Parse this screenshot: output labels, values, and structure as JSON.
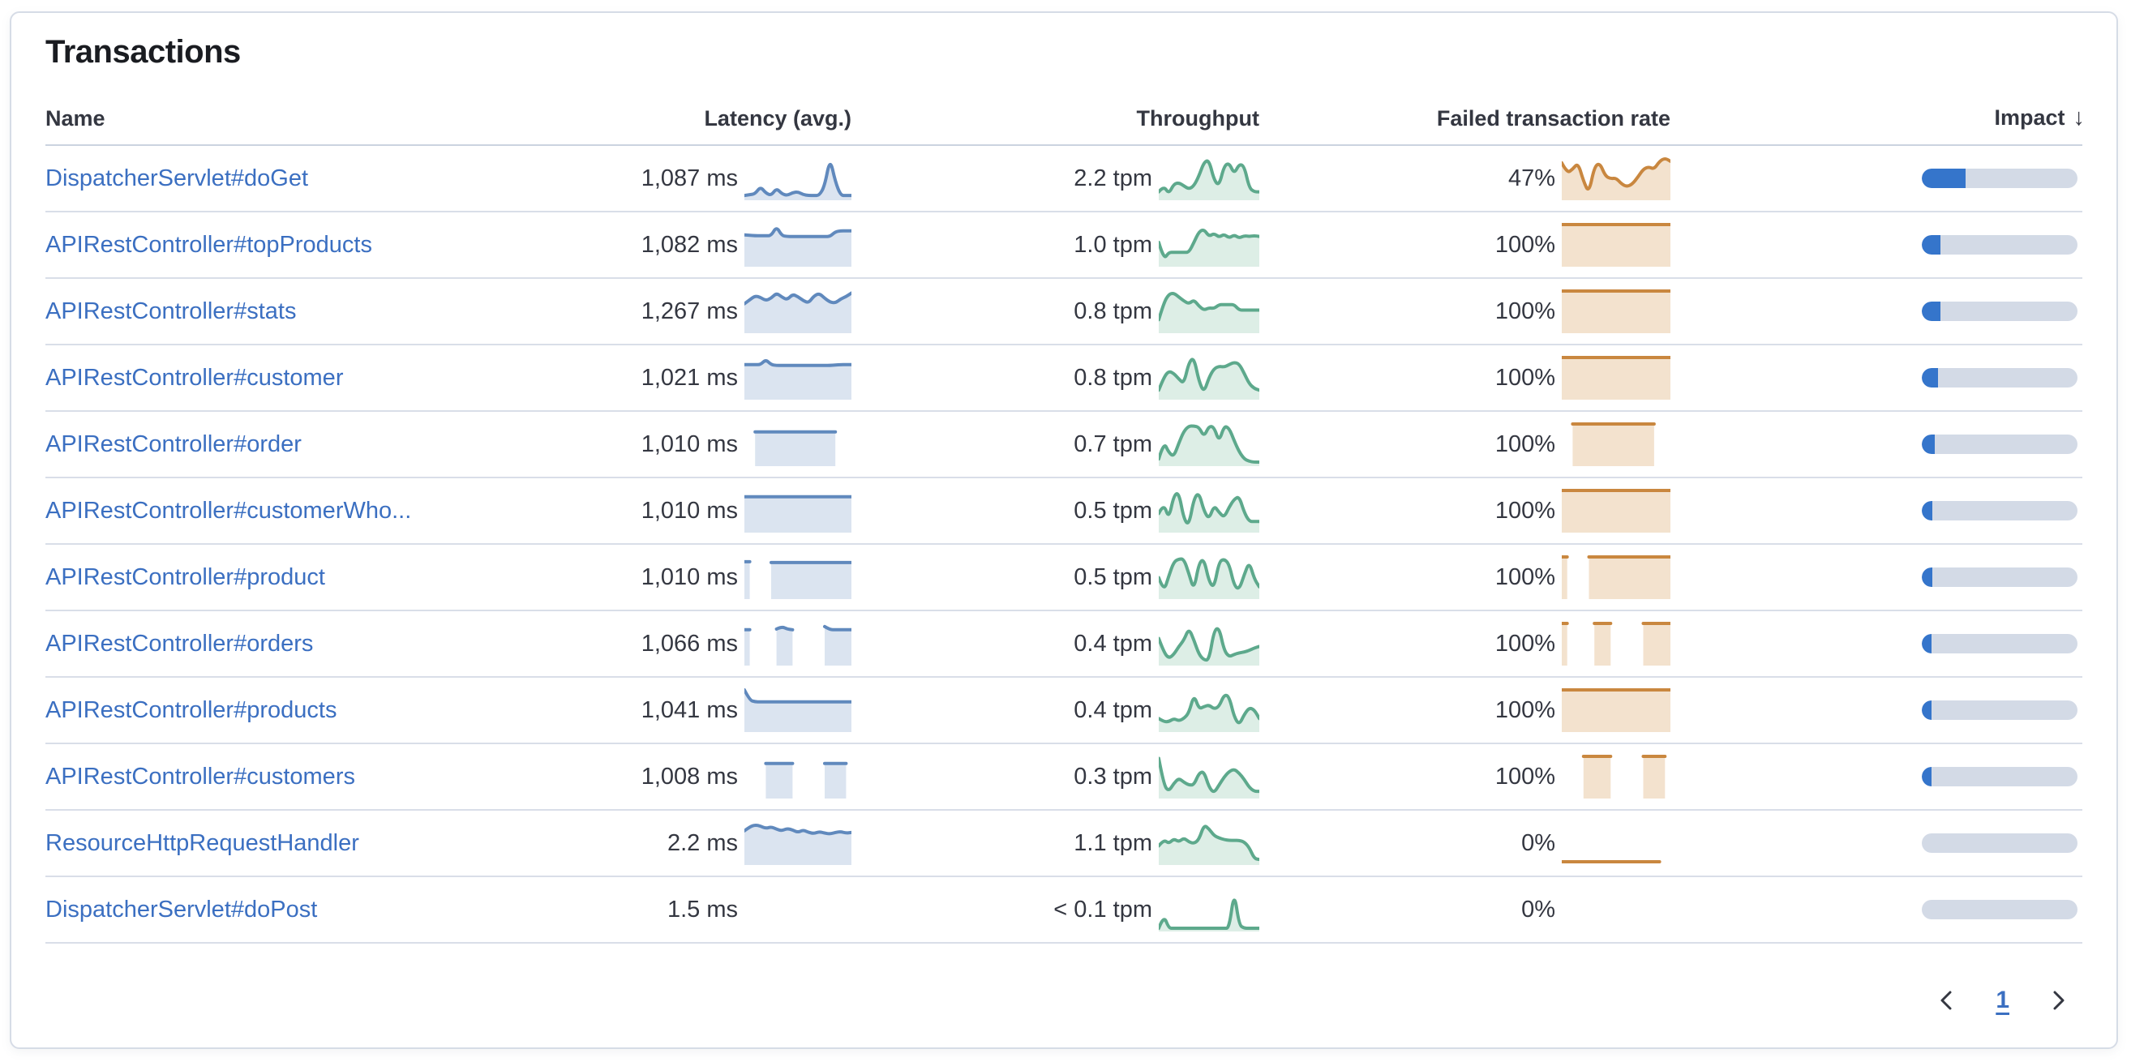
{
  "panel": {
    "title": "Transactions"
  },
  "table": {
    "columns": [
      {
        "key": "name",
        "label": "Name"
      },
      {
        "key": "latency",
        "label": "Latency (avg.)"
      },
      {
        "key": "throughput",
        "label": "Throughput"
      },
      {
        "key": "failed",
        "label": "Failed transaction rate"
      },
      {
        "key": "impact",
        "label": "Impact",
        "sorted": "desc"
      }
    ],
    "sort_icon": "↓",
    "rows": [
      {
        "name": "DispatcherServlet#doGet",
        "latency": "1,087 ms",
        "throughput": "2.2 tpm",
        "failed_rate": "47%",
        "impact_pct": 28,
        "latency_spark": [
          0.06,
          0.08,
          0.1,
          0.28,
          0.12,
          0.06,
          0.24,
          0.1,
          0.06,
          0.13,
          0.15,
          0.08,
          0.06,
          0.06,
          0.06,
          0.3,
          1.0,
          0.4,
          0.06,
          0.06,
          0.06
        ],
        "throughput_spark": [
          0.15,
          0.3,
          0.1,
          0.35,
          0.38,
          0.3,
          0.22,
          0.3,
          0.55,
          0.9,
          0.95,
          0.45,
          0.3,
          0.8,
          0.88,
          0.6,
          0.85,
          0.8,
          0.25,
          0.15,
          0.15
        ],
        "failed_spark": [
          0.88,
          0.62,
          0.72,
          0.88,
          0.42,
          0.12,
          0.78,
          0.88,
          0.55,
          0.48,
          0.5,
          0.35,
          0.28,
          0.35,
          0.52,
          0.72,
          0.78,
          0.72,
          0.92,
          1.0,
          0.92
        ]
      },
      {
        "name": "APIRestController#topProducts",
        "latency": "1,082 ms",
        "throughput": "1.0 tpm",
        "failed_rate": "100%",
        "impact_pct": 12,
        "latency_spark": [
          0.74,
          0.73,
          0.72,
          0.72,
          0.72,
          0.72,
          0.95,
          0.72,
          0.7,
          0.7,
          0.7,
          0.7,
          0.7,
          0.7,
          0.7,
          0.7,
          0.7,
          0.82,
          0.84,
          0.84,
          0.84
        ],
        "throughput_spark": [
          0.55,
          0.12,
          0.3,
          0.3,
          0.3,
          0.3,
          0.3,
          0.55,
          0.82,
          0.88,
          0.7,
          0.78,
          0.68,
          0.76,
          0.66,
          0.74,
          0.66,
          0.72,
          0.7,
          0.72,
          0.7
        ],
        "failed_spark": [
          1,
          1,
          1,
          1,
          1,
          1,
          1,
          1,
          1,
          1,
          1,
          1,
          1,
          1,
          1,
          1,
          1,
          1,
          1,
          1,
          1
        ]
      },
      {
        "name": "APIRestController#stats",
        "latency": "1,267 ms",
        "throughput": "0.8 tpm",
        "failed_rate": "100%",
        "impact_pct": 12,
        "latency_spark": [
          0.68,
          0.78,
          0.88,
          0.84,
          0.76,
          0.82,
          0.95,
          0.85,
          0.78,
          0.92,
          0.86,
          0.76,
          0.7,
          0.88,
          0.94,
          0.82,
          0.72,
          0.7,
          0.8,
          0.86,
          0.95
        ],
        "throughput_spark": [
          0.28,
          0.7,
          0.92,
          0.95,
          0.85,
          0.75,
          0.68,
          0.78,
          0.62,
          0.52,
          0.58,
          0.56,
          0.66,
          0.66,
          0.66,
          0.66,
          0.52,
          0.52,
          0.52,
          0.52,
          0.52
        ],
        "failed_spark": [
          1,
          1,
          1,
          1,
          1,
          1,
          1,
          1,
          1,
          1,
          1,
          1,
          1,
          1,
          1,
          1,
          1,
          1,
          1,
          1,
          1
        ]
      },
      {
        "name": "APIRestController#customer",
        "latency": "1,021 ms",
        "throughput": "0.8 tpm",
        "failed_rate": "100%",
        "impact_pct": 10.5,
        "latency_spark": [
          0.82,
          0.82,
          0.82,
          0.82,
          0.95,
          0.82,
          0.8,
          0.8,
          0.8,
          0.8,
          0.8,
          0.8,
          0.8,
          0.8,
          0.8,
          0.8,
          0.8,
          0.81,
          0.82,
          0.82,
          0.82
        ],
        "throughput_spark": [
          0.18,
          0.5,
          0.66,
          0.6,
          0.46,
          0.34,
          0.88,
          1.0,
          0.4,
          0.12,
          0.5,
          0.72,
          0.78,
          0.76,
          0.82,
          0.88,
          0.84,
          0.6,
          0.34,
          0.22,
          0.18
        ],
        "failed_spark": [
          1,
          1,
          1,
          1,
          1,
          1,
          1,
          1,
          1,
          1,
          1,
          1,
          1,
          1,
          1,
          1,
          1,
          1,
          1,
          1,
          1
        ]
      },
      {
        "name": "APIRestController#order",
        "latency": "1,010 ms",
        "throughput": "0.7 tpm",
        "failed_rate": "100%",
        "impact_pct": 8.5,
        "latency_spark": [
          null,
          null,
          0.8,
          0.8,
          0.8,
          0.8,
          0.8,
          0.8,
          0.8,
          0.8,
          0.8,
          0.8,
          0.8,
          0.8,
          0.8,
          0.8,
          0.8,
          0.8,
          null,
          null,
          null
        ],
        "throughput_spark": [
          0.12,
          0.55,
          0.28,
          0.18,
          0.52,
          0.82,
          0.95,
          0.95,
          0.92,
          0.68,
          0.95,
          0.92,
          0.55,
          0.95,
          0.9,
          0.58,
          0.3,
          0.12,
          0.06,
          0.04,
          0.04
        ],
        "failed_spark": [
          null,
          null,
          1,
          1,
          1,
          1,
          1,
          1,
          1,
          1,
          1,
          1,
          1,
          1,
          1,
          1,
          1,
          1,
          null,
          null,
          null
        ]
      },
      {
        "name": "APIRestController#customerWho...",
        "latency": "1,010 ms",
        "throughput": "0.5 tpm",
        "failed_rate": "100%",
        "impact_pct": 7,
        "latency_spark": [
          0.84,
          0.84,
          0.84,
          0.84,
          0.84,
          0.84,
          0.84,
          0.84,
          0.84,
          0.84,
          0.84,
          0.84,
          0.84,
          0.84,
          0.84,
          0.84,
          0.84,
          0.84,
          0.84,
          0.84,
          0.84
        ],
        "throughput_spark": [
          0.42,
          0.68,
          0.28,
          0.88,
          0.95,
          0.28,
          0.12,
          0.8,
          0.95,
          0.48,
          0.28,
          0.62,
          0.45,
          0.32,
          0.58,
          0.78,
          0.85,
          0.45,
          0.22,
          0.22,
          0.22
        ],
        "failed_spark": [
          1,
          1,
          1,
          1,
          1,
          1,
          1,
          1,
          1,
          1,
          1,
          1,
          1,
          1,
          1,
          1,
          1,
          1,
          1,
          1,
          1
        ]
      },
      {
        "name": "APIRestController#product",
        "latency": "1,010 ms",
        "throughput": "0.5 tpm",
        "failed_rate": "100%",
        "impact_pct": 7,
        "latency_spark": [
          0.88,
          0.88,
          null,
          null,
          null,
          0.86,
          0.86,
          0.86,
          0.86,
          0.86,
          0.86,
          0.86,
          0.86,
          0.86,
          0.86,
          0.86,
          0.86,
          0.86,
          0.86,
          0.86,
          0.86
        ],
        "throughput_spark": [
          0.48,
          0.12,
          0.52,
          0.88,
          0.95,
          0.95,
          0.58,
          0.16,
          0.85,
          0.95,
          0.38,
          0.22,
          0.88,
          0.95,
          0.82,
          0.28,
          0.18,
          0.55,
          0.88,
          0.45,
          0.25
        ],
        "failed_spark": [
          1,
          1,
          null,
          null,
          null,
          1,
          1,
          1,
          1,
          1,
          1,
          1,
          1,
          1,
          1,
          1,
          1,
          1,
          1,
          1,
          1
        ]
      },
      {
        "name": "APIRestController#orders",
        "latency": "1,066 ms",
        "throughput": "0.4 tpm",
        "failed_rate": "100%",
        "impact_pct": 6.5,
        "latency_spark": [
          0.84,
          0.84,
          null,
          null,
          null,
          null,
          0.86,
          0.92,
          0.86,
          0.84,
          null,
          null,
          null,
          null,
          null,
          0.92,
          0.84,
          0.84,
          0.84,
          0.84,
          0.84
        ],
        "throughput_spark": [
          0.62,
          0.28,
          0.12,
          0.22,
          0.42,
          0.58,
          0.88,
          0.58,
          0.22,
          0.08,
          0.08,
          0.82,
          0.9,
          0.32,
          0.16,
          0.22,
          0.26,
          0.28,
          0.32,
          0.38,
          0.42
        ],
        "failed_spark": [
          1,
          1,
          null,
          null,
          null,
          null,
          1,
          1,
          1,
          1,
          null,
          null,
          null,
          null,
          null,
          1,
          1,
          1,
          1,
          1,
          1
        ]
      },
      {
        "name": "APIRestController#products",
        "latency": "1,041 ms",
        "throughput": "0.4 tpm",
        "failed_rate": "100%",
        "impact_pct": 6.5,
        "latency_spark": [
          1.0,
          0.74,
          0.7,
          0.7,
          0.7,
          0.7,
          0.7,
          0.7,
          0.7,
          0.7,
          0.7,
          0.7,
          0.7,
          0.7,
          0.7,
          0.7,
          0.7,
          0.7,
          0.7,
          0.7,
          0.7
        ],
        "throughput_spark": [
          0.28,
          0.2,
          0.2,
          0.28,
          0.22,
          0.28,
          0.42,
          0.88,
          0.52,
          0.58,
          0.62,
          0.52,
          0.58,
          0.88,
          0.84,
          0.32,
          0.12,
          0.38,
          0.55,
          0.5,
          0.28
        ],
        "failed_spark": [
          1,
          1,
          1,
          1,
          1,
          1,
          1,
          1,
          1,
          1,
          1,
          1,
          1,
          1,
          1,
          1,
          1,
          1,
          1,
          1,
          1
        ]
      },
      {
        "name": "APIRestController#customers",
        "latency": "1,008 ms",
        "throughput": "0.3 tpm",
        "failed_rate": "100%",
        "impact_pct": 6,
        "latency_spark": [
          null,
          null,
          null,
          null,
          0.82,
          0.82,
          0.82,
          0.82,
          0.82,
          0.82,
          null,
          null,
          null,
          null,
          null,
          0.82,
          0.82,
          0.82,
          0.82,
          0.82,
          null
        ],
        "throughput_spark": [
          0.95,
          0.28,
          0.12,
          0.32,
          0.45,
          0.35,
          0.28,
          0.28,
          0.58,
          0.62,
          0.22,
          0.08,
          0.28,
          0.48,
          0.62,
          0.68,
          0.58,
          0.42,
          0.22,
          0.12,
          0.12
        ],
        "failed_spark": [
          null,
          null,
          null,
          null,
          1,
          1,
          1,
          1,
          1,
          1,
          null,
          null,
          null,
          null,
          null,
          1,
          1,
          1,
          1,
          1,
          null
        ]
      },
      {
        "name": "ResourceHttpRequestHandler",
        "latency": "2.2 ms",
        "throughput": "1.1 tpm",
        "failed_rate": "0%",
        "impact_pct": 0,
        "latency_spark": [
          0.8,
          0.9,
          0.95,
          0.92,
          0.86,
          0.9,
          0.84,
          0.8,
          0.86,
          0.82,
          0.76,
          0.82,
          0.76,
          0.73,
          0.78,
          0.74,
          0.72,
          0.76,
          0.78,
          0.74,
          0.76
        ],
        "throughput_spark": [
          0.42,
          0.58,
          0.48,
          0.6,
          0.52,
          0.62,
          0.52,
          0.48,
          0.58,
          0.95,
          0.85,
          0.68,
          0.62,
          0.58,
          0.56,
          0.56,
          0.56,
          0.52,
          0.38,
          0.1,
          0.08
        ],
        "failed_spark": [
          0.02,
          0.02,
          0.02,
          0.02,
          0.02,
          0.02,
          0.02,
          0.02,
          0.02,
          0.02,
          0.02,
          0.02,
          0.02,
          0.02,
          0.02,
          0.02,
          0.02,
          0.02,
          0.02,
          null,
          null
        ]
      },
      {
        "name": "DispatcherServlet#doPost",
        "latency": "1.5 ms",
        "throughput": "< 0.1 tpm",
        "failed_rate": "0%",
        "impact_pct": 0,
        "latency_spark": [],
        "throughput_spark": [
          0.02,
          0.35,
          0.02,
          0.02,
          0.02,
          0.02,
          0.02,
          0.02,
          0.02,
          0.02,
          0.02,
          0.02,
          0.02,
          0.02,
          0.02,
          0.95,
          0.1,
          0.02,
          0.02,
          0.02,
          0.02
        ],
        "failed_spark": []
      }
    ]
  },
  "pagination": {
    "current_page": "1"
  },
  "colors": {
    "link": "#3b6fc1",
    "text": "#343741",
    "title": "#1a1c21",
    "divider": "#d9dee8",
    "latency_line": "#6089bd",
    "latency_fill": "#dbe4f0",
    "throughput_line": "#5da98c",
    "throughput_fill": "#ddeee6",
    "failed_line": "#c9873f",
    "failed_fill": "#f3e2ce",
    "impact_fill": "#3575cb",
    "impact_track": "#d3dae6"
  }
}
